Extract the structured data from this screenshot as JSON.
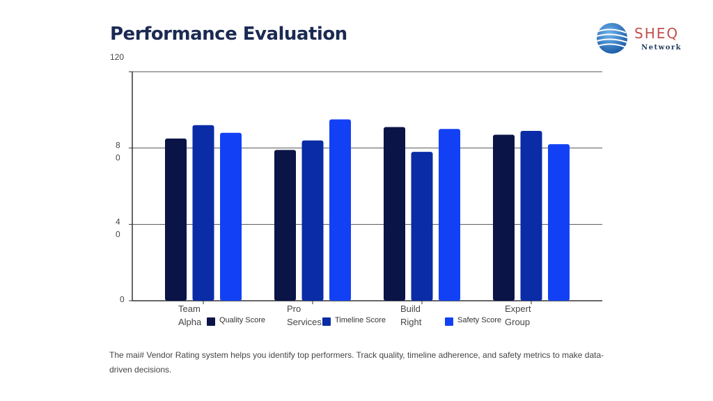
{
  "title": "Performance Evaluation",
  "logo": {
    "name": "SHEQ",
    "subtitle": "Network"
  },
  "description": "The mai# Vendor Rating system helps you identify top performers. Track quality, timeline adherence, and safety metrics to make data-driven decisions.",
  "chart_data": {
    "type": "bar",
    "title": "Performance Evaluation",
    "xlabel": "",
    "ylabel": "",
    "ylim": [
      0,
      120
    ],
    "grid": true,
    "legend_position": "bottom",
    "y_ticks": [
      {
        "value": 0,
        "label": "0"
      },
      {
        "value": 40,
        "label": "4\n0"
      },
      {
        "value": 80,
        "label": "8\n0"
      },
      {
        "value": 120,
        "label": "120"
      }
    ],
    "categories": [
      "Team Alpha",
      "Pro Services",
      "Build Right",
      "Expert Group"
    ],
    "series": [
      {
        "name": "Quality Score",
        "color": "#0a1446",
        "values": [
          85,
          79,
          91,
          87
        ]
      },
      {
        "name": "Timeline Score",
        "color": "#0a2ca6",
        "values": [
          92,
          84,
          78,
          89
        ]
      },
      {
        "name": "Safety Score",
        "color": "#1241f5",
        "values": [
          88,
          95,
          90,
          82
        ]
      }
    ]
  }
}
